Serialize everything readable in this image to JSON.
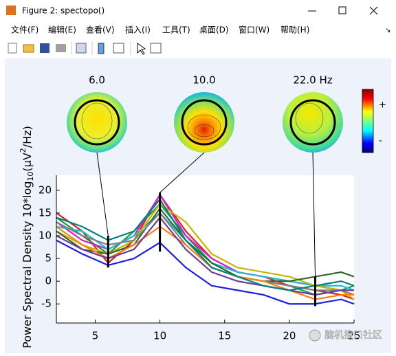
{
  "window": {
    "title": "Figure 2: spectopo()",
    "menu": [
      "文件(F)",
      "编辑(E)",
      "查看(V)",
      "插入(I)",
      "工具(T)",
      "桌面(D)",
      "窗口(W)",
      "帮助(H)"
    ]
  },
  "watermark": "脑机接口社区",
  "chart_data": {
    "type": "line",
    "topomap_labels": [
      "6.0",
      "10.0",
      "22.0 Hz"
    ],
    "colorbar_labels": [
      "+",
      "-"
    ],
    "ylabel_parts": [
      "Power Spectral Density 10*log",
      "10",
      "(μV",
      "2",
      "/Hz)"
    ],
    "x": [
      2,
      4,
      6,
      8,
      10,
      12,
      14,
      16,
      18,
      20,
      22,
      24,
      25
    ],
    "series": [
      {
        "color": "#e41a1c",
        "values": [
          15,
          11,
          4,
          9,
          19,
          11,
          5,
          2,
          1,
          -1,
          -2,
          -3,
          -4
        ]
      },
      {
        "color": "#1f1fe0",
        "values": [
          9,
          6,
          3.5,
          5,
          8.5,
          3,
          -1,
          -2,
          -3,
          -5,
          -5,
          -4,
          -5
        ]
      },
      {
        "color": "#1a9641",
        "values": [
          14,
          10,
          6,
          11,
          17,
          10,
          4,
          1,
          0,
          -1,
          -3,
          -2,
          -1
        ]
      },
      {
        "color": "#d020d0",
        "values": [
          13,
          9,
          7,
          10,
          19,
          10,
          5,
          2,
          1,
          0,
          -1,
          -2,
          -3
        ]
      },
      {
        "color": "#17becf",
        "values": [
          12,
          11,
          7,
          10,
          15,
          9,
          4,
          2,
          1,
          0,
          -1,
          -1,
          -2
        ]
      },
      {
        "color": "#c8b400",
        "values": [
          11,
          8,
          6,
          9,
          17,
          13,
          6,
          3,
          2,
          1,
          -1,
          -2,
          -4
        ]
      },
      {
        "color": "#2e6b2e",
        "values": [
          11,
          7,
          6,
          8,
          16,
          9,
          4,
          1,
          0,
          0,
          1,
          2,
          1
        ]
      },
      {
        "color": "#7f7f7f",
        "values": [
          13,
          10,
          8,
          9,
          15,
          8,
          3,
          1,
          0,
          -1,
          -2,
          -2,
          -3
        ]
      },
      {
        "color": "#ff7f0e",
        "values": [
          12,
          8,
          5,
          8,
          12,
          8,
          3,
          1,
          0,
          -2,
          -4,
          -3,
          -3
        ]
      },
      {
        "color": "#6a3d9a",
        "values": [
          10,
          7,
          5,
          7,
          14,
          7,
          2,
          0,
          -1,
          -2,
          -3,
          -2,
          -2
        ]
      },
      {
        "color": "#008080",
        "values": [
          14,
          12,
          9,
          11,
          18,
          9,
          3,
          1,
          -1,
          -2,
          -1,
          0,
          -1
        ]
      }
    ],
    "freq_markers": [
      {
        "freq": 6,
        "ymin": 3,
        "ymax": 10
      },
      {
        "freq": 10,
        "ymin": 6.5,
        "ymax": 19.5
      },
      {
        "freq": 22,
        "ymin": -5.5,
        "ymax": 1
      }
    ],
    "xlim": [
      2,
      25
    ],
    "ylim": [
      -9.2,
      23.3
    ],
    "xticks": [
      5,
      10,
      15,
      20,
      25
    ],
    "yticks": [
      -5,
      0,
      5,
      10,
      15,
      20
    ]
  }
}
